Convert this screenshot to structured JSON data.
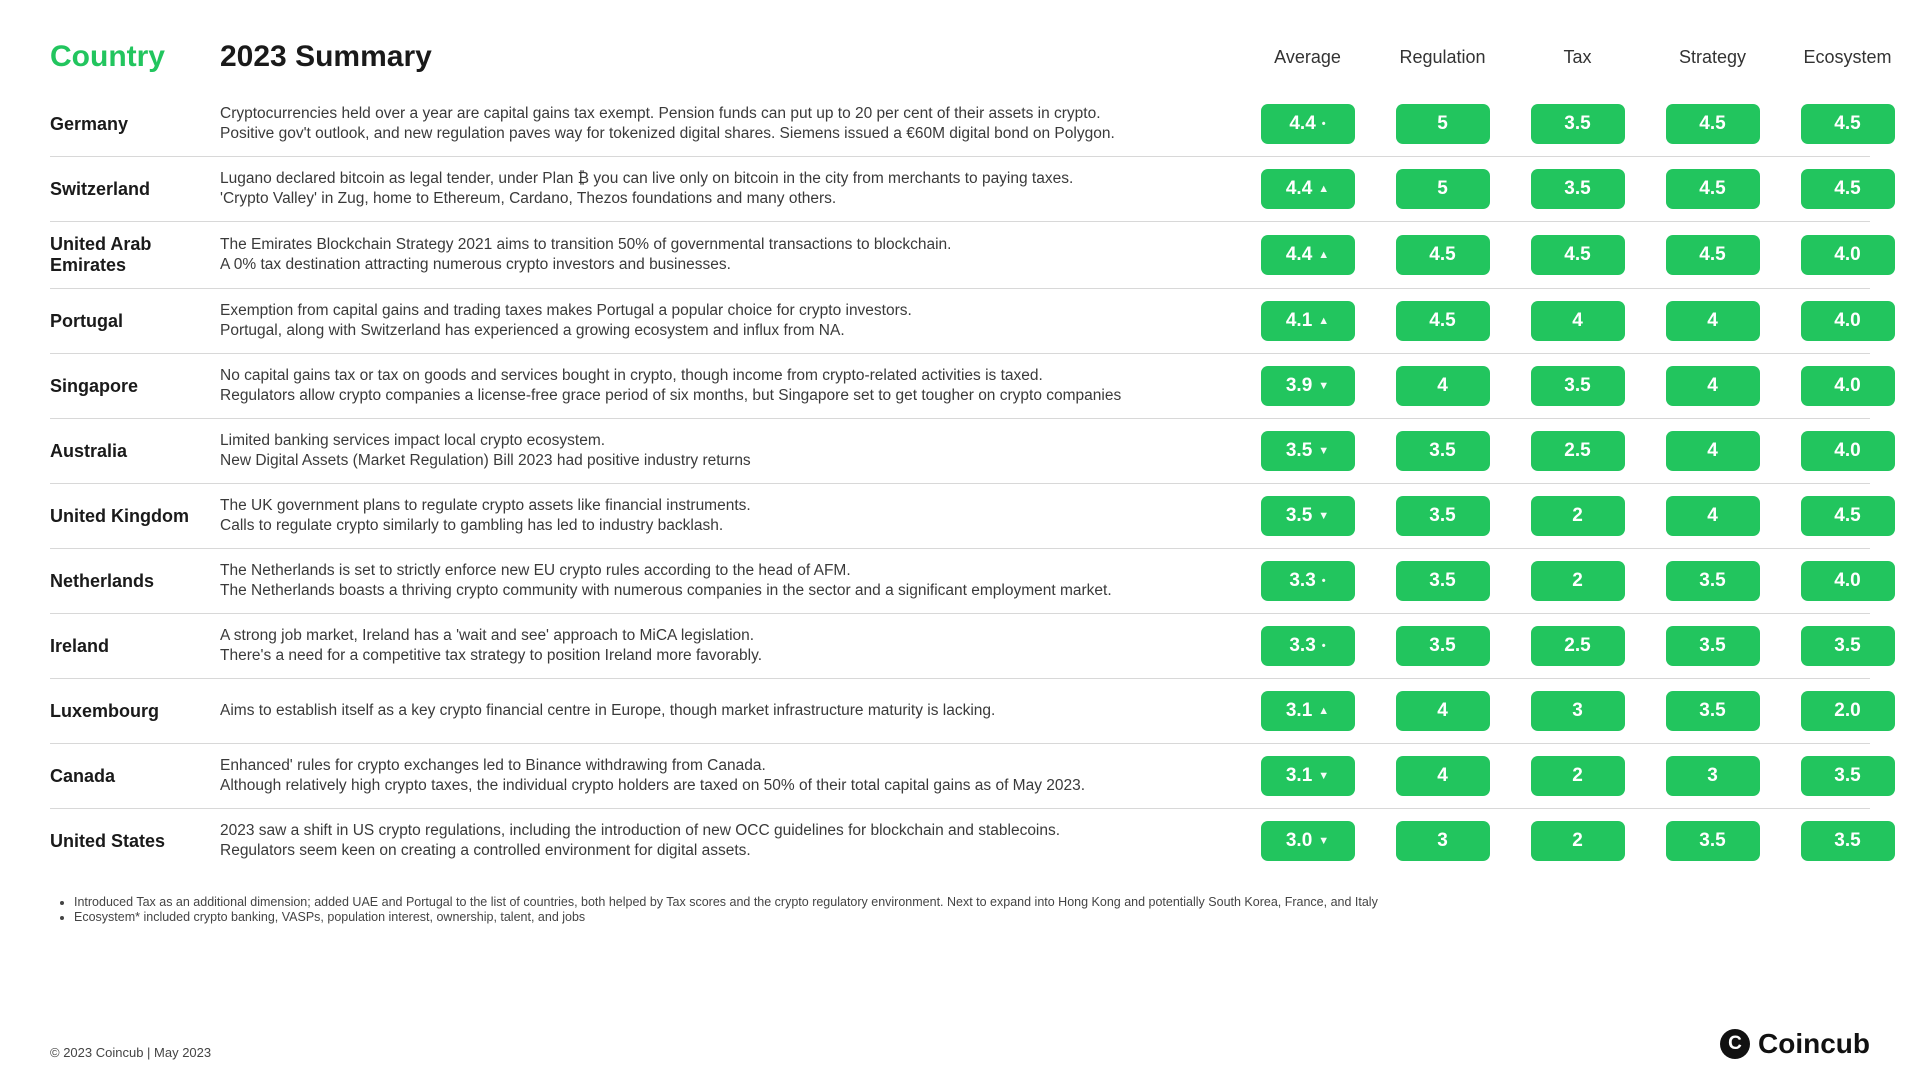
{
  "colors": {
    "accent": "#22c55e",
    "pill_bg": "#22c55e",
    "pill_text": "#ffffff",
    "header_text": "#1a1a1a",
    "indicator_up": "▲",
    "indicator_down": "▼",
    "indicator_flat": "•"
  },
  "headers": {
    "country": "Country",
    "summary": "2023 Summary",
    "cols": [
      "Average",
      "Regulation",
      "Tax",
      "Strategy",
      "Ecosystem"
    ]
  },
  "rows": [
    {
      "country": "Germany",
      "summary": "Cryptocurrencies held over a year are capital gains tax exempt. Pension funds can put up to 20 per cent of their assets in crypto.\nPositive gov't outlook, and new regulation paves way for tokenized digital shares. Siemens issued a €60M digital bond on Polygon.",
      "avg": "4.4",
      "avg_ind": "flat",
      "scores": [
        "5",
        "3.5",
        "4.5",
        "4.5"
      ]
    },
    {
      "country": "Switzerland",
      "summary": "Lugano declared bitcoin as legal tender, under Plan ₿ you can live only on bitcoin in the city from merchants to paying taxes.\n'Crypto Valley' in Zug, home to Ethereum, Cardano, Thezos foundations and many others.",
      "avg": "4.4",
      "avg_ind": "up",
      "scores": [
        "5",
        "3.5",
        "4.5",
        "4.5"
      ]
    },
    {
      "country": "United Arab Emirates",
      "summary": "The Emirates Blockchain Strategy 2021 aims to transition 50% of governmental transactions to blockchain.\nA 0% tax destination attracting numerous crypto investors and businesses.",
      "avg": "4.4",
      "avg_ind": "up",
      "scores": [
        "4.5",
        "4.5",
        "4.5",
        "4.0"
      ]
    },
    {
      "country": "Portugal",
      "summary": "Exemption from capital gains and trading taxes makes Portugal a popular choice for crypto investors.\nPortugal, along with Switzerland has experienced a growing ecosystem and influx from NA.",
      "avg": "4.1",
      "avg_ind": "up",
      "scores": [
        "4.5",
        "4",
        "4",
        "4.0"
      ]
    },
    {
      "country": "Singapore",
      "summary": "No capital gains tax or tax on goods and services bought in crypto, though income from crypto-related activities is taxed.\nRegulators allow crypto companies a license-free grace period of six months, but Singapore set to get tougher on crypto companies",
      "avg": "3.9",
      "avg_ind": "down",
      "scores": [
        "4",
        "3.5",
        "4",
        "4.0"
      ]
    },
    {
      "country": "Australia",
      "summary": "Limited banking services impact local crypto ecosystem.\nNew Digital Assets (Market Regulation) Bill 2023 had positive industry returns",
      "avg": "3.5",
      "avg_ind": "down",
      "scores": [
        "3.5",
        "2.5",
        "4",
        "4.0"
      ]
    },
    {
      "country": "United Kingdom",
      "summary": "The UK government plans to regulate crypto assets like financial instruments.\nCalls to regulate crypto similarly to gambling has led to industry backlash.",
      "avg": "3.5",
      "avg_ind": "down",
      "scores": [
        "3.5",
        "2",
        "4",
        "4.5"
      ]
    },
    {
      "country": "Netherlands",
      "summary": "The Netherlands is set to strictly enforce new EU crypto rules according to the head of AFM.\nThe Netherlands boasts a thriving crypto community with numerous companies in the sector and a significant employment market.",
      "avg": "3.3",
      "avg_ind": "flat",
      "scores": [
        "3.5",
        "2",
        "3.5",
        "4.0"
      ]
    },
    {
      "country": "Ireland",
      "summary": "A strong job market, Ireland has a 'wait and see' approach to MiCA legislation.\nThere's a need for a competitive tax strategy to position Ireland more favorably.",
      "avg": "3.3",
      "avg_ind": "flat",
      "scores": [
        "3.5",
        "2.5",
        "3.5",
        "3.5"
      ]
    },
    {
      "country": "Luxembourg",
      "summary": "Aims to establish itself as a key crypto financial centre in Europe, though market infrastructure maturity is lacking.",
      "avg": "3.1",
      "avg_ind": "up",
      "scores": [
        "4",
        "3",
        "3.5",
        "2.0"
      ]
    },
    {
      "country": "Canada",
      "summary": "Enhanced' rules for crypto exchanges led to Binance withdrawing from Canada.\nAlthough relatively high crypto taxes, the individual crypto holders are taxed on 50% of their total capital gains as of May 2023.",
      "avg": "3.1",
      "avg_ind": "down",
      "scores": [
        "4",
        "2",
        "3",
        "3.5"
      ]
    },
    {
      "country": "United States",
      "summary": "2023 saw a shift in US crypto regulations, including the introduction of new OCC guidelines for blockchain and stablecoins.\nRegulators seem keen on creating a controlled environment for digital assets.",
      "avg": "3.0",
      "avg_ind": "down",
      "scores": [
        "3",
        "2",
        "3.5",
        "3.5"
      ]
    }
  ],
  "footnotes": [
    "Introduced Tax as an additional dimension; added UAE and Portugal to the list of countries, both helped by Tax scores and the crypto regulatory environment. Next to expand into Hong Kong and potentially South Korea, France, and Italy",
    "Ecosystem* included crypto banking, VASPs, population interest, ownership, talent, and jobs"
  ],
  "copyright": "© 2023 Coincub | May 2023",
  "logo_text": "Coincub",
  "logo_mark": "C"
}
